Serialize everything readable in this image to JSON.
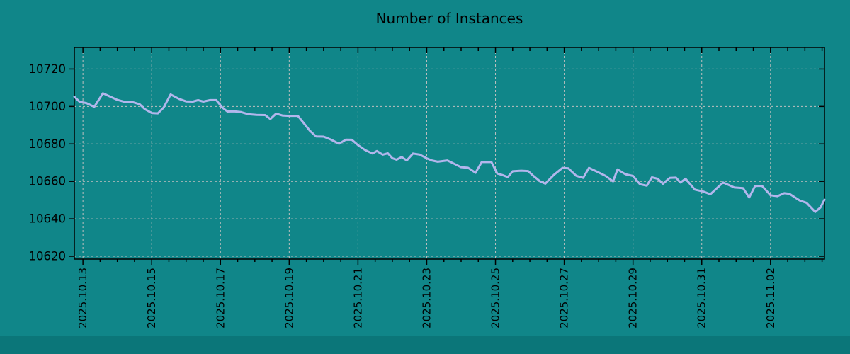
{
  "title": "Number of Instances",
  "colors": {
    "background": "#108689",
    "footer_strip": "#0b7679",
    "line": "#b2b6ec",
    "grid": "#bfbfbf",
    "axis": "#000000",
    "text": "#000000"
  },
  "chart_data": {
    "type": "line",
    "title": "Number of Instances",
    "xlabel": "",
    "ylabel": "",
    "x_unit": "days since 2025-10-13 00:00",
    "xlim": [
      -0.25,
      21.57
    ],
    "ylim": [
      10618.5,
      10731.5
    ],
    "grid": "dashed",
    "legend": "none",
    "y_ticks": [
      10620,
      10640,
      10660,
      10680,
      10700,
      10720
    ],
    "x_tick_positions": [
      0,
      2,
      4,
      6,
      8,
      10,
      12,
      14,
      16,
      18,
      20
    ],
    "x_tick_labels": [
      "2025.10.13",
      "2025.10.15",
      "2025.10.17",
      "2025.10.19",
      "2025.10.21",
      "2025.10.23",
      "2025.10.25",
      "2025.10.27",
      "2025.10.29",
      "2025.10.31",
      "2025.11.02"
    ],
    "minor_tick_step_days": 0.5,
    "series": [
      {
        "name": "instances",
        "color": "#b2b6ec",
        "points": [
          [
            -0.25,
            10705.2
          ],
          [
            -0.1,
            10702.5
          ],
          [
            0.1,
            10701.8
          ],
          [
            0.33,
            10699.8
          ],
          [
            0.58,
            10707
          ],
          [
            0.8,
            10705.2
          ],
          [
            1.0,
            10703.5
          ],
          [
            1.2,
            10702.5
          ],
          [
            1.45,
            10702.3
          ],
          [
            1.65,
            10701.2
          ],
          [
            1.8,
            10698.6
          ],
          [
            2.0,
            10696.5
          ],
          [
            2.18,
            10696.3
          ],
          [
            2.35,
            10699.5
          ],
          [
            2.55,
            10706.4
          ],
          [
            2.8,
            10704
          ],
          [
            3.0,
            10702.7
          ],
          [
            3.2,
            10702.6
          ],
          [
            3.35,
            10703.4
          ],
          [
            3.5,
            10702.6
          ],
          [
            3.7,
            10703.4
          ],
          [
            3.88,
            10703.4
          ],
          [
            4.05,
            10699.5
          ],
          [
            4.2,
            10697.3
          ],
          [
            4.4,
            10697.4
          ],
          [
            4.6,
            10697
          ],
          [
            4.8,
            10695.9
          ],
          [
            5.05,
            10695.5
          ],
          [
            5.3,
            10695.4
          ],
          [
            5.45,
            10693.3
          ],
          [
            5.62,
            10696.2
          ],
          [
            5.8,
            10695.2
          ],
          [
            6.0,
            10695
          ],
          [
            6.25,
            10695
          ],
          [
            6.45,
            10690.5
          ],
          [
            6.6,
            10687
          ],
          [
            6.78,
            10684
          ],
          [
            7.0,
            10683.9
          ],
          [
            7.2,
            10682.4
          ],
          [
            7.45,
            10680.1
          ],
          [
            7.65,
            10682.3
          ],
          [
            7.82,
            10682.2
          ],
          [
            8.0,
            10679.4
          ],
          [
            8.2,
            10676.8
          ],
          [
            8.42,
            10674.9
          ],
          [
            8.55,
            10676.2
          ],
          [
            8.72,
            10674.3
          ],
          [
            8.87,
            10675
          ],
          [
            9.0,
            10672.4
          ],
          [
            9.12,
            10671.6
          ],
          [
            9.27,
            10673
          ],
          [
            9.42,
            10671.2
          ],
          [
            9.6,
            10674.9
          ],
          [
            9.8,
            10674.3
          ],
          [
            10.0,
            10672.3
          ],
          [
            10.15,
            10671.2
          ],
          [
            10.32,
            10670.5
          ],
          [
            10.6,
            10671.2
          ],
          [
            10.8,
            10669.4
          ],
          [
            11.0,
            10667.6
          ],
          [
            11.2,
            10667.3
          ],
          [
            11.42,
            10664.6
          ],
          [
            11.6,
            10670.3
          ],
          [
            11.88,
            10670.4
          ],
          [
            12.05,
            10664.2
          ],
          [
            12.2,
            10663.4
          ],
          [
            12.36,
            10662.3
          ],
          [
            12.5,
            10665.4
          ],
          [
            12.75,
            10665.7
          ],
          [
            12.95,
            10665.5
          ],
          [
            13.1,
            10663
          ],
          [
            13.3,
            10660
          ],
          [
            13.45,
            10658.8
          ],
          [
            13.7,
            10663.5
          ],
          [
            13.95,
            10667.2
          ],
          [
            14.12,
            10667
          ],
          [
            14.35,
            10663
          ],
          [
            14.55,
            10661.9
          ],
          [
            14.72,
            10667.2
          ],
          [
            14.95,
            10665.2
          ],
          [
            15.2,
            10663
          ],
          [
            15.42,
            10660
          ],
          [
            15.55,
            10666.4
          ],
          [
            15.78,
            10663.8
          ],
          [
            16.0,
            10662.9
          ],
          [
            16.2,
            10658.5
          ],
          [
            16.4,
            10657.7
          ],
          [
            16.55,
            10662.2
          ],
          [
            16.72,
            10661.4
          ],
          [
            16.87,
            10658.7
          ],
          [
            17.07,
            10661.9
          ],
          [
            17.25,
            10662
          ],
          [
            17.38,
            10659.4
          ],
          [
            17.53,
            10661.4
          ],
          [
            17.8,
            10655.6
          ],
          [
            18.05,
            10654.5
          ],
          [
            18.25,
            10653.1
          ],
          [
            18.62,
            10659.4
          ],
          [
            18.95,
            10656.7
          ],
          [
            19.2,
            10656.4
          ],
          [
            19.38,
            10651.4
          ],
          [
            19.55,
            10657.5
          ],
          [
            19.75,
            10657.6
          ],
          [
            20.0,
            10652.6
          ],
          [
            20.2,
            10652.1
          ],
          [
            20.4,
            10653.7
          ],
          [
            20.55,
            10653.4
          ],
          [
            20.85,
            10649.8
          ],
          [
            21.05,
            10648.5
          ],
          [
            21.3,
            10643.7
          ],
          [
            21.45,
            10646
          ],
          [
            21.57,
            10650.2
          ]
        ]
      }
    ]
  }
}
